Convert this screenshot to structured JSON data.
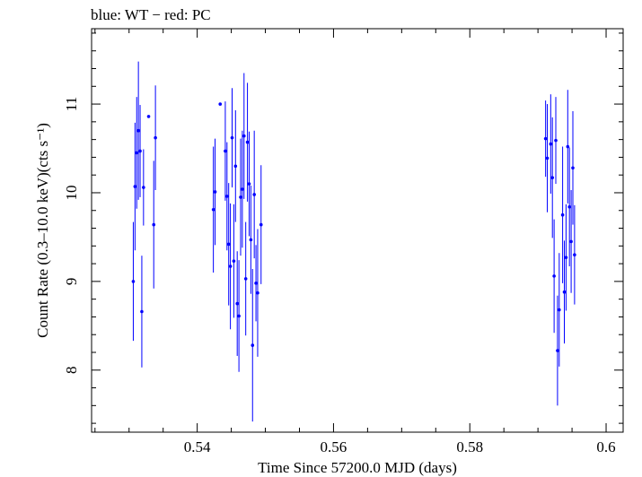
{
  "chart_data": {
    "type": "scatter",
    "title": "blue: WT − red: PC",
    "xlabel": "Time Since 57200.0 MJD (days)",
    "ylabel": "Count Rate (0.3–10.0 keV)(cts s⁻¹)",
    "xlim": [
      0.5245,
      0.6025
    ],
    "ylim": [
      7.3,
      11.85
    ],
    "xticks": [
      0.54,
      0.56,
      0.58,
      0.6
    ],
    "xtick_labels": [
      "0.54",
      "0.56",
      "0.58",
      "0.6"
    ],
    "yticks": [
      8,
      9,
      10,
      11
    ],
    "ytick_labels": [
      "8",
      "9",
      "10",
      "11"
    ],
    "grid": false,
    "legend": "none",
    "colors": {
      "WT": "#0000ff",
      "PC": "#ff0000"
    },
    "series": [
      {
        "name": "WT",
        "points": [
          {
            "x": 0.53062,
            "y": 9.0,
            "yerr": 0.67
          },
          {
            "x": 0.53087,
            "y": 10.07,
            "yerr": 0.72
          },
          {
            "x": 0.53112,
            "y": 10.45,
            "yerr": 0.63
          },
          {
            "x": 0.53137,
            "y": 10.7,
            "yerr": 0.78
          },
          {
            "x": 0.53162,
            "y": 10.47,
            "yerr": 0.52
          },
          {
            "x": 0.53187,
            "y": 8.66,
            "yerr": 0.63
          },
          {
            "x": 0.53212,
            "y": 10.06,
            "yerr": 0.43
          },
          {
            "x": 0.53287,
            "y": 10.86,
            "yerr": 0.0,
            "xerr": 0.00015
          },
          {
            "x": 0.53362,
            "y": 9.64,
            "yerr": 0.72
          },
          {
            "x": 0.53387,
            "y": 10.62,
            "yerr": 0.59
          },
          {
            "x": 0.54237,
            "y": 9.81,
            "yerr": 0.71
          },
          {
            "x": 0.54262,
            "y": 10.01,
            "yerr": 0.6
          },
          {
            "x": 0.54337,
            "y": 11.0,
            "yerr": 0.0,
            "xerr": 0.00015
          },
          {
            "x": 0.54412,
            "y": 10.47,
            "yerr": 0.56
          },
          {
            "x": 0.54437,
            "y": 9.96,
            "yerr": 0.61
          },
          {
            "x": 0.54462,
            "y": 9.42,
            "yerr": 0.69
          },
          {
            "x": 0.54487,
            "y": 9.17,
            "yerr": 0.71
          },
          {
            "x": 0.54512,
            "y": 10.62,
            "yerr": 0.56
          },
          {
            "x": 0.54537,
            "y": 9.23,
            "yerr": 0.64
          },
          {
            "x": 0.54562,
            "y": 10.3,
            "yerr": 0.63
          },
          {
            "x": 0.54587,
            "y": 8.75,
            "yerr": 0.59
          },
          {
            "x": 0.54612,
            "y": 8.61,
            "yerr": 0.63
          },
          {
            "x": 0.54637,
            "y": 9.95,
            "yerr": 0.66
          },
          {
            "x": 0.54662,
            "y": 10.04,
            "yerr": 0.66
          },
          {
            "x": 0.54687,
            "y": 10.64,
            "yerr": 0.71
          },
          {
            "x": 0.54712,
            "y": 9.03,
            "yerr": 0.64
          },
          {
            "x": 0.54737,
            "y": 10.57,
            "yerr": 0.67
          },
          {
            "x": 0.54762,
            "y": 10.1,
            "yerr": 0.59
          },
          {
            "x": 0.54787,
            "y": 9.47,
            "yerr": 0.61
          },
          {
            "x": 0.54812,
            "y": 8.28,
            "yerr": 0.86
          },
          {
            "x": 0.54837,
            "y": 9.98,
            "yerr": 0.72
          },
          {
            "x": 0.54862,
            "y": 8.98,
            "yerr": 0.43
          },
          {
            "x": 0.54887,
            "y": 8.87,
            "yerr": 0.72
          },
          {
            "x": 0.54937,
            "y": 9.64,
            "yerr": 0.67
          },
          {
            "x": 0.59112,
            "y": 10.61,
            "yerr": 0.43
          },
          {
            "x": 0.59137,
            "y": 10.39,
            "yerr": 0.61
          },
          {
            "x": 0.59187,
            "y": 10.55,
            "yerr": 0.56
          },
          {
            "x": 0.59212,
            "y": 10.17,
            "yerr": 0.68
          },
          {
            "x": 0.59237,
            "y": 9.06,
            "yerr": 0.64
          },
          {
            "x": 0.59262,
            "y": 10.59,
            "yerr": 0.49
          },
          {
            "x": 0.59287,
            "y": 8.22,
            "yerr": 0.62
          },
          {
            "x": 0.59312,
            "y": 8.68,
            "yerr": 0.64
          },
          {
            "x": 0.59362,
            "y": 9.75,
            "yerr": 0.77
          },
          {
            "x": 0.59387,
            "y": 8.88,
            "yerr": 0.58
          },
          {
            "x": 0.59412,
            "y": 9.27,
            "yerr": 0.6
          },
          {
            "x": 0.59437,
            "y": 10.52,
            "yerr": 0.64
          },
          {
            "x": 0.59462,
            "y": 9.84,
            "yerr": 0.67
          },
          {
            "x": 0.59487,
            "y": 9.45,
            "yerr": 0.58
          },
          {
            "x": 0.59512,
            "y": 10.28,
            "yerr": 0.64
          },
          {
            "x": 0.59537,
            "y": 9.3,
            "yerr": 0.56
          }
        ]
      }
    ]
  }
}
